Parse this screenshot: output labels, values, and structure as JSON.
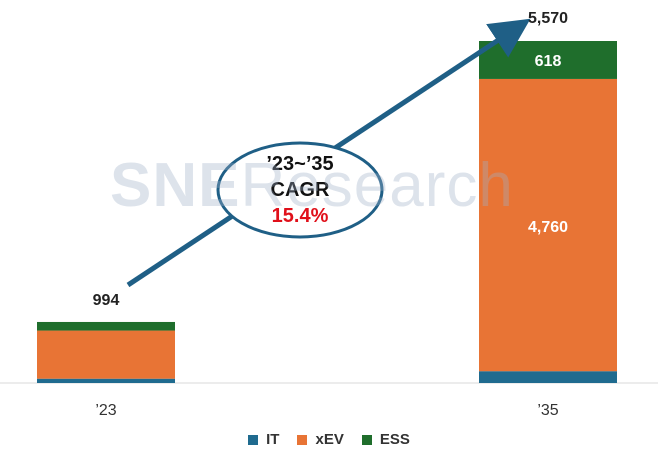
{
  "chart_data": {
    "type": "bar",
    "stacked": true,
    "categories": [
      "’23",
      "’35"
    ],
    "series": [
      {
        "name": "IT",
        "color": "#1f6b8f",
        "values": [
          70,
          192
        ]
      },
      {
        "name": "xEV",
        "color": "#e87435",
        "values": [
          784,
          4760
        ]
      },
      {
        "name": "ESS",
        "color": "#1f6e2c",
        "values": [
          140,
          618
        ]
      }
    ],
    "totals": [
      994,
      5570
    ],
    "data_labels": {
      "total_23": "994",
      "total_35": "5,570",
      "xev_35": "4,760",
      "ess_35": "618"
    },
    "annotation": {
      "line1": "’23~’35",
      "line2": "CAGR",
      "line3": "15.4%"
    },
    "watermark": {
      "main": "SNE",
      "rest": "Research"
    },
    "ylim": [
      0,
      6000
    ],
    "grid": false,
    "legend_position": "bottom"
  }
}
